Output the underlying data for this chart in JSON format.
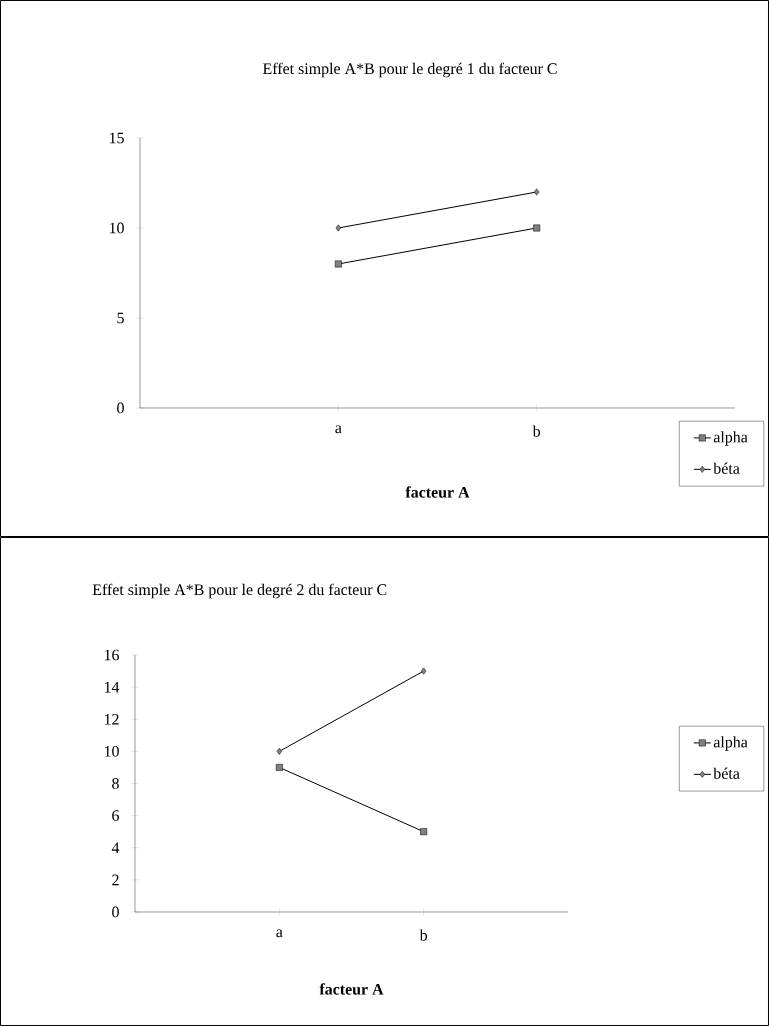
{
  "chart_data": [
    {
      "type": "line",
      "title": "Effet simple A*B pour le degré 1 du facteur C",
      "xlabel": "facteur A",
      "categories": [
        "a",
        "b"
      ],
      "ylim": [
        0,
        15
      ],
      "yticks": [
        0,
        5,
        10,
        15
      ],
      "legend": "bottom right",
      "grid": false,
      "series": [
        {
          "name": "alpha",
          "color": "#000000",
          "marker": "square",
          "values": [
            8,
            10
          ]
        },
        {
          "name": "béta",
          "color": "#000000",
          "marker": "diamond",
          "values": [
            10,
            12
          ]
        }
      ]
    },
    {
      "type": "line",
      "title": "Effet simple A*B pour le degré 2 du facteur C",
      "xlabel": "facteur A",
      "categories": [
        "a",
        "b"
      ],
      "ylim": [
        0,
        16
      ],
      "yticks": [
        0,
        2,
        4,
        6,
        8,
        10,
        12,
        14,
        16
      ],
      "legend": "right",
      "grid": false,
      "series": [
        {
          "name": "alpha",
          "color": "#000000",
          "marker": "square",
          "values": [
            9,
            5
          ]
        },
        {
          "name": "béta",
          "color": "#000000",
          "marker": "diamond",
          "values": [
            10,
            15
          ]
        }
      ]
    }
  ]
}
